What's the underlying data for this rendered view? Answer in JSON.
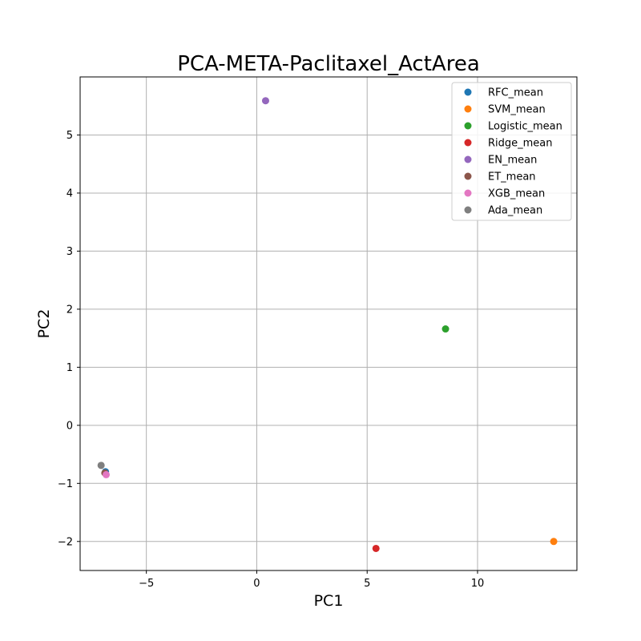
{
  "chart_data": {
    "type": "scatter",
    "title": "PCA-META-Paclitaxel_ActArea",
    "xlabel": "PC1",
    "ylabel": "PC2",
    "xlim": [
      -8.0,
      14.5
    ],
    "ylim": [
      -2.5,
      6.0
    ],
    "xticks": [
      -5,
      0,
      5,
      10
    ],
    "xtick_labels": [
      "−5",
      "0",
      "5",
      "10"
    ],
    "yticks": [
      -2,
      -1,
      0,
      1,
      2,
      3,
      4,
      5
    ],
    "ytick_labels": [
      "−2",
      "−1",
      "0",
      "1",
      "2",
      "3",
      "4",
      "5"
    ],
    "grid": true,
    "legend_position": "top-right",
    "series": [
      {
        "name": "RFC_mean",
        "color": "#1f77b4",
        "x": [
          -6.85
        ],
        "y": [
          -0.8
        ]
      },
      {
        "name": "SVM_mean",
        "color": "#ff7f0e",
        "x": [
          13.45
        ],
        "y": [
          -2.0
        ]
      },
      {
        "name": "Logistic_mean",
        "color": "#2ca02c",
        "x": [
          8.55
        ],
        "y": [
          1.66
        ]
      },
      {
        "name": "Ridge_mean",
        "color": "#d62728",
        "x": [
          5.4
        ],
        "y": [
          -2.12
        ]
      },
      {
        "name": "EN_mean",
        "color": "#9467bd",
        "x": [
          0.4
        ],
        "y": [
          5.59
        ]
      },
      {
        "name": "ET_mean",
        "color": "#8c564b",
        "x": [
          -6.88
        ],
        "y": [
          -0.82
        ]
      },
      {
        "name": "XGB_mean",
        "color": "#e377c2",
        "x": [
          -6.82
        ],
        "y": [
          -0.85
        ]
      },
      {
        "name": "Ada_mean",
        "color": "#7f7f7f",
        "x": [
          -7.05
        ],
        "y": [
          -0.69
        ]
      }
    ]
  }
}
